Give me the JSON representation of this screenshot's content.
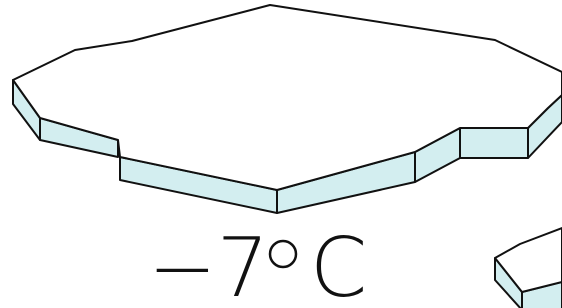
{
  "temperature": {
    "value": "−7",
    "unit": "C"
  }
}
